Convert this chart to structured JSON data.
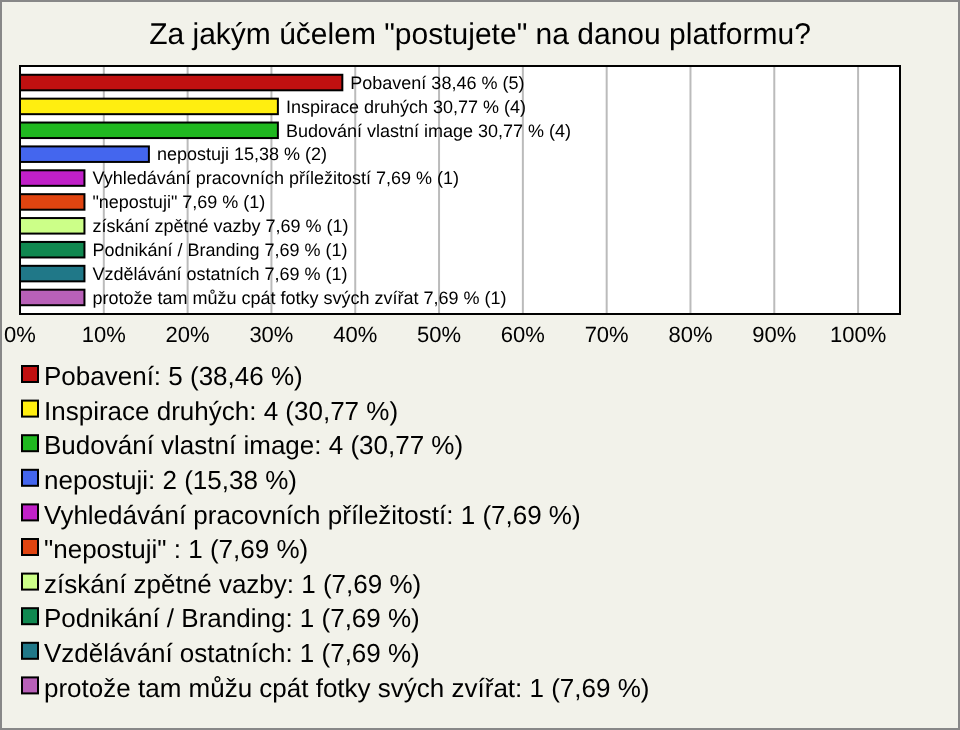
{
  "chart_data": {
    "type": "bar",
    "orientation": "horizontal",
    "title": "Za jakým účelem \"postujete\" na danou platformu?",
    "categories": [
      null,
      null,
      null,
      null,
      null,
      null,
      null,
      null,
      null,
      null
    ],
    "values": [
      38.46,
      30.77,
      30.77,
      15.38,
      7.69,
      7.69,
      7.69,
      7.69,
      7.69,
      7.69
    ],
    "colors": [
      "#c01010",
      "#ffee10",
      "#20b820",
      "#4466ee",
      "#c020c8",
      "#e04410",
      "#ccff88",
      "#108850",
      "#207888",
      "#b860b8"
    ],
    "value_labels": [
      "Pobavení 38,46 % (5)",
      "Inspirace druhých 30,77 % (4)",
      "Budování vlastní image 30,77 % (4)",
      "nepostuji 15,38 % (2)",
      "Vyhledávání pracovních příležitostí 7,69 % (1)",
      "\"nepostuji\"  7,69 % (1)",
      "získání zpětné vazby 7,69 % (1)",
      "Podnikání / Branding 7,69 % (1)",
      "Vzdělávání ostatních 7,69 % (1)",
      "protože tam můžu cpát fotky svých zvířat 7,69 % (1)"
    ],
    "annotations": [
      "Pobavení: 5 (38,46 %)",
      "Inspirace druhých: 4 (30,77 %)",
      "Budování vlastní image: 4 (30,77 %)",
      "nepostuji: 2 (15,38 %)",
      "Vyhledávání pracovních příležitostí: 1 (7,69 %)",
      "\"nepostuji\" : 1 (7,69 %)",
      "získání zpětné vazby: 1 (7,69 %)",
      "Podnikání / Branding: 1 (7,69 %)",
      "Vzdělávání ostatních: 1 (7,69 %)",
      "protože tam můžu cpát fotky svých zvířat: 1 (7,69 %)"
    ],
    "xlim": [
      0,
      105
    ],
    "xticks": [
      {
        "value": 0,
        "label": "0%"
      },
      {
        "value": 10,
        "label": "10%"
      },
      {
        "value": 20,
        "label": "20%"
      },
      {
        "value": 30,
        "label": "30%"
      },
      {
        "value": 40,
        "label": "40%"
      },
      {
        "value": 50,
        "label": "50%"
      },
      {
        "value": 60,
        "label": "60%"
      },
      {
        "value": 70,
        "label": "70%"
      },
      {
        "value": 80,
        "label": "80%"
      },
      {
        "value": 90,
        "label": "90%"
      },
      {
        "value": 100,
        "label": "100%"
      }
    ],
    "grid": "x",
    "tick_labels": "x"
  }
}
